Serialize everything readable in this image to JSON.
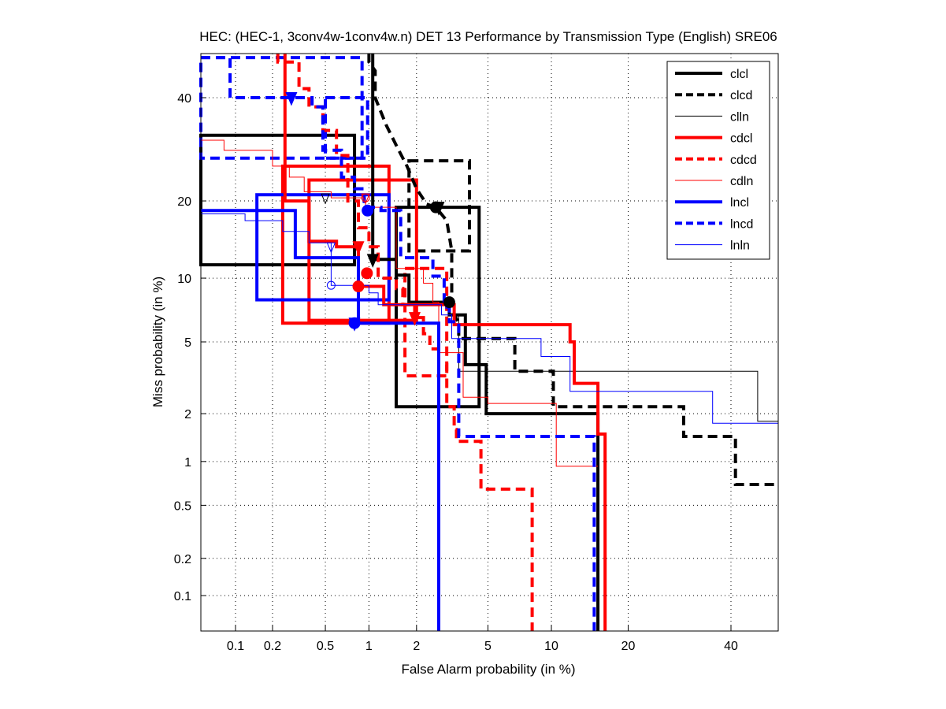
{
  "chart_data": {
    "type": "line",
    "subtype": "DET",
    "title": "HEC: (HEC-1, 3conv4w-1conv4w.n) DET 13 Performance by Transmission Type (English) SRE06",
    "xlabel": "False Alarm probability (in %)",
    "ylabel": "Miss probability (in %)",
    "xscale": "probit",
    "yscale": "probit",
    "xlim": [
      0.05,
      55
    ],
    "ylim": [
      0.05,
      55
    ],
    "xticks": [
      0.1,
      0.2,
      0.5,
      1,
      2,
      5,
      10,
      20,
      40
    ],
    "xtick_labels": [
      "0.1",
      "0.2",
      "0.5",
      "1",
      "2",
      "5",
      "10",
      "20",
      "40"
    ],
    "yticks": [
      0.1,
      0.2,
      0.5,
      1,
      2,
      5,
      10,
      20,
      40
    ],
    "ytick_labels": [
      "0.1",
      "0.2",
      "0.5",
      "1",
      "2",
      "5",
      "10",
      "20",
      "40"
    ],
    "grid": true,
    "legend_position": "top-right",
    "legend": [
      "clcl",
      "clcd",
      "clln",
      "cdcl",
      "cdcd",
      "cdln",
      "lncl",
      "lncd",
      "lnln"
    ],
    "colors": {
      "black": "#000000",
      "red": "#ff0000",
      "blue": "#0000ff"
    },
    "series": [
      {
        "name": "clcl",
        "color": "#000000",
        "style": "solid",
        "weight": "thick",
        "act_dcf": [
          1.06,
          12
        ],
        "min_dcf": [
          3.1,
          7.8
        ],
        "points": [
          [
            1.06,
            55
          ],
          [
            1.06,
            12
          ],
          [
            1.5,
            12
          ],
          [
            1.5,
            10.3
          ],
          [
            1.8,
            10.3
          ],
          [
            1.8,
            7.8
          ],
          [
            3.1,
            7.8
          ],
          [
            3.1,
            6.8
          ],
          [
            3.8,
            6.8
          ],
          [
            3.8,
            3.8
          ],
          [
            4.9,
            3.8
          ],
          [
            4.9,
            2.0
          ],
          [
            15.5,
            2.0
          ],
          [
            15.5,
            0.05
          ]
        ]
      },
      {
        "name": "clcd",
        "color": "#000000",
        "style": "dashed",
        "weight": "thick",
        "act_dcf": [
          2.7,
          19
        ],
        "min_dcf": [
          2.6,
          19
        ],
        "points": [
          [
            1.0,
            55
          ],
          [
            1.0,
            48
          ],
          [
            1.1,
            46
          ],
          [
            1.1,
            40
          ],
          [
            1.3,
            34
          ],
          [
            1.5,
            30
          ],
          [
            1.75,
            26
          ],
          [
            2.0,
            22
          ],
          [
            2.3,
            19.5
          ],
          [
            2.6,
            19
          ],
          [
            3.0,
            17
          ],
          [
            3.2,
            13
          ],
          [
            3.2,
            7.2
          ],
          [
            3.5,
            6.2
          ],
          [
            3.5,
            5.2
          ],
          [
            4.6,
            5.2
          ],
          [
            6.8,
            5.2
          ],
          [
            6.8,
            3.5
          ],
          [
            10.2,
            3.5
          ],
          [
            10.2,
            2.2
          ],
          [
            30,
            2.2
          ],
          [
            30,
            1.45
          ],
          [
            41,
            1.45
          ],
          [
            41,
            0.7
          ],
          [
            55,
            0.7
          ]
        ]
      },
      {
        "name": "clln",
        "color": "#000000",
        "style": "solid",
        "weight": "thin",
        "act_dcf": [
          0.5,
          20.5
        ],
        "min_dcf": [
          3.1,
          7.8
        ],
        "points": [
          [
            3.5,
            6.8
          ],
          [
            3.5,
            3.5
          ],
          [
            46,
            3.5
          ],
          [
            46,
            1.8
          ],
          [
            55,
            1.8
          ]
        ]
      },
      {
        "name": "cdcl",
        "color": "#ff0000",
        "style": "solid",
        "weight": "thick",
        "act_dcf": [
          0.85,
          13.5
        ],
        "min_dcf": [
          0.85,
          9.2
        ],
        "points": [
          [
            0.25,
            55
          ],
          [
            0.25,
            20
          ],
          [
            0.38,
            20
          ],
          [
            0.38,
            14.2
          ],
          [
            0.6,
            14.2
          ],
          [
            0.6,
            13.5
          ],
          [
            0.85,
            13.5
          ],
          [
            0.85,
            9.2
          ],
          [
            1.25,
            9.2
          ],
          [
            1.25,
            7.6
          ],
          [
            3.3,
            7.6
          ],
          [
            3.3,
            6.1
          ],
          [
            12,
            6.1
          ],
          [
            12,
            5.0
          ],
          [
            12.5,
            5.0
          ],
          [
            12.5,
            3.0
          ],
          [
            15.5,
            3.0
          ],
          [
            15.5,
            1.5
          ],
          [
            16.5,
            1.5
          ],
          [
            16.5,
            0.05
          ]
        ]
      },
      {
        "name": "cdcd",
        "color": "#ff0000",
        "style": "dashed",
        "weight": "thick",
        "act_dcf": [
          1.95,
          6.6
        ],
        "min_dcf": [
          0.97,
          10.5
        ],
        "points": [
          [
            0.22,
            52
          ],
          [
            0.22,
            48
          ],
          [
            0.32,
            48
          ],
          [
            0.32,
            42
          ],
          [
            0.38,
            42
          ],
          [
            0.38,
            38
          ],
          [
            0.48,
            38
          ],
          [
            0.48,
            33
          ],
          [
            0.6,
            33
          ],
          [
            0.6,
            28
          ],
          [
            0.72,
            28
          ],
          [
            0.72,
            20
          ],
          [
            0.85,
            20
          ],
          [
            0.85,
            16
          ],
          [
            1.0,
            16
          ],
          [
            1.0,
            13.5
          ],
          [
            1.15,
            13.5
          ],
          [
            1.15,
            10
          ],
          [
            1.5,
            10
          ],
          [
            1.5,
            9
          ],
          [
            1.65,
            9
          ],
          [
            1.65,
            7.6
          ],
          [
            1.95,
            7.6
          ],
          [
            1.95,
            6.6
          ],
          [
            2.2,
            6.6
          ],
          [
            2.2,
            5.5
          ],
          [
            2.4,
            5.5
          ],
          [
            2.4,
            4.6
          ],
          [
            2.7,
            4.6
          ],
          [
            2.7,
            3.8
          ],
          [
            3.0,
            3.8
          ],
          [
            3.0,
            2.2
          ],
          [
            3.3,
            2.2
          ],
          [
            3.3,
            1.6
          ],
          [
            3.4,
            1.6
          ],
          [
            3.4,
            1.35
          ],
          [
            4.6,
            1.35
          ],
          [
            4.6,
            0.65
          ],
          [
            8.2,
            0.65
          ],
          [
            8.2,
            0.05
          ]
        ]
      },
      {
        "name": "cdln",
        "color": "#ff0000",
        "style": "solid",
        "weight": "thin",
        "act_dcf": [
          0.95,
          20.5
        ],
        "min_dcf": [
          0.95,
          20.5
        ],
        "points": [
          [
            0.05,
            31
          ],
          [
            0.08,
            31
          ],
          [
            0.08,
            29
          ],
          [
            0.2,
            29
          ],
          [
            0.2,
            26
          ],
          [
            0.27,
            26
          ],
          [
            0.27,
            24
          ],
          [
            0.35,
            24
          ],
          [
            0.35,
            21.5
          ],
          [
            0.55,
            21.5
          ],
          [
            0.55,
            20.5
          ],
          [
            0.95,
            20.5
          ],
          [
            0.95,
            19
          ],
          [
            1.5,
            19
          ],
          [
            1.5,
            11
          ],
          [
            2.2,
            11
          ],
          [
            2.2,
            9.5
          ],
          [
            2.5,
            9.5
          ],
          [
            2.5,
            7.8
          ],
          [
            2.7,
            7.8
          ],
          [
            2.7,
            4.4
          ],
          [
            3.7,
            4.4
          ],
          [
            3.7,
            2.5
          ],
          [
            5.0,
            2.5
          ],
          [
            5.0,
            2.3
          ],
          [
            10.5,
            2.3
          ],
          [
            10.5,
            0.93
          ],
          [
            15.5,
            0.93
          ]
        ]
      },
      {
        "name": "lncl",
        "color": "#0000ff",
        "style": "solid",
        "weight": "thick",
        "act_dcf": [
          0.8,
          6.2
        ],
        "min_dcf": [
          0.8,
          6.2
        ],
        "points": [
          [
            0.05,
            18.5
          ],
          [
            0.3,
            18.5
          ],
          [
            0.3,
            12.2
          ],
          [
            0.85,
            12.2
          ],
          [
            0.85,
            6.2
          ],
          [
            2.7,
            6.2
          ],
          [
            2.7,
            0.05
          ]
        ]
      },
      {
        "name": "lncd",
        "color": "#0000ff",
        "style": "dashed",
        "weight": "thick",
        "act_dcf": [
          0.28,
          40
        ],
        "min_dcf": [
          0.98,
          18.5
        ],
        "points": [
          [
            0.05,
            49
          ],
          [
            0.09,
            49
          ],
          [
            0.09,
            40
          ],
          [
            0.28,
            40
          ],
          [
            0.4,
            40
          ],
          [
            0.4,
            38
          ],
          [
            0.48,
            38
          ],
          [
            0.48,
            29
          ],
          [
            0.65,
            29
          ],
          [
            0.65,
            24
          ],
          [
            0.8,
            24
          ],
          [
            0.8,
            22
          ],
          [
            0.93,
            22
          ],
          [
            0.93,
            19
          ],
          [
            1.2,
            19
          ],
          [
            1.2,
            18.5
          ],
          [
            1.6,
            18.5
          ],
          [
            1.6,
            12.2
          ],
          [
            2.5,
            12.2
          ],
          [
            2.5,
            10.2
          ],
          [
            2.9,
            10.2
          ],
          [
            2.9,
            7.4
          ],
          [
            3.1,
            7.4
          ],
          [
            3.1,
            6.3
          ],
          [
            3.5,
            6.3
          ],
          [
            3.5,
            1.45
          ],
          [
            15,
            1.45
          ],
          [
            15,
            0.05
          ]
        ]
      },
      {
        "name": "lnln",
        "color": "#0000ff",
        "style": "solid",
        "weight": "thin",
        "act_dcf": [
          0.55,
          13.5
        ],
        "min_dcf": [
          0.55,
          9.3
        ],
        "points": [
          [
            0.05,
            18
          ],
          [
            0.12,
            18
          ],
          [
            0.12,
            17
          ],
          [
            0.24,
            17
          ],
          [
            0.24,
            15.5
          ],
          [
            0.38,
            15.5
          ],
          [
            0.38,
            14
          ],
          [
            0.55,
            14
          ],
          [
            0.55,
            9.3
          ],
          [
            1.0,
            9.3
          ],
          [
            1.0,
            8.6
          ],
          [
            1.15,
            8.6
          ],
          [
            1.15,
            7.6
          ],
          [
            2.8,
            7.6
          ],
          [
            2.8,
            6.8
          ],
          [
            3.2,
            6.8
          ],
          [
            3.2,
            5.2
          ],
          [
            9.0,
            5.2
          ],
          [
            9.0,
            4.2
          ],
          [
            12,
            4.2
          ],
          [
            12,
            2.7
          ],
          [
            36,
            2.7
          ],
          [
            36,
            1.75
          ],
          [
            55,
            1.75
          ]
        ]
      }
    ],
    "boxes": [
      {
        "series": "clcl",
        "fa": [
          0.05,
          0.8
        ],
        "miss": [
          11.4,
          32
        ]
      },
      {
        "series": "clcl",
        "fa": [
          1.5,
          4.5
        ],
        "miss": [
          2.2,
          19
        ]
      },
      {
        "series": "clcd",
        "fa": [
          1.8,
          4.0
        ],
        "miss": [
          13,
          27
        ]
      },
      {
        "series": "cdcl",
        "fa": [
          0.24,
          1.35
        ],
        "miss": [
          6.2,
          26
        ]
      },
      {
        "series": "cdcl",
        "fa": [
          0.38,
          2.0
        ],
        "miss": [
          6.4,
          23.5
        ]
      },
      {
        "series": "cdcd",
        "fa": [
          1.7,
          3.0
        ],
        "miss": [
          3.3,
          11
        ]
      },
      {
        "series": "lncl",
        "fa": [
          0.15,
          1.35
        ],
        "miss": [
          8.0,
          21
        ]
      },
      {
        "series": "lncd",
        "fa": [
          0.05,
          0.9
        ],
        "miss": [
          27.5,
          49
        ]
      },
      {
        "series": "lncd",
        "fa": [
          0.5,
          0.98
        ],
        "miss": [
          27.5,
          40
        ]
      }
    ]
  }
}
